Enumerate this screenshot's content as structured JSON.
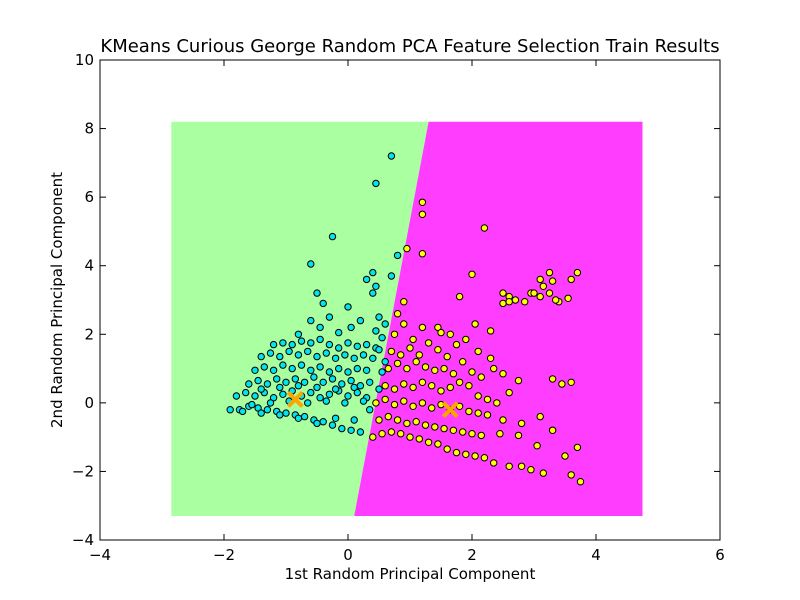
{
  "chart_data": {
    "type": "scatter",
    "title": "KMeans Curious George Random PCA Feature Selection Train Results",
    "xlabel": "1st Random Principal Component",
    "ylabel": "2nd Random Principal Component",
    "xlim": [
      -4,
      6
    ],
    "ylim": [
      -4,
      10
    ],
    "xticks": [
      -4,
      -2,
      0,
      2,
      4,
      6
    ],
    "yticks": [
      -4,
      -2,
      0,
      2,
      4,
      6,
      8,
      10
    ],
    "grid": false,
    "legend": "none",
    "regions": {
      "extent": {
        "x": [
          -2.85,
          4.75
        ],
        "y": [
          -3.3,
          8.2
        ]
      },
      "boundary": [
        [
          0.1,
          -3.3
        ],
        [
          1.3,
          8.2
        ]
      ],
      "left_color": "#aaffa0",
      "right_color": "#ff3dff"
    },
    "series": [
      {
        "color": "#00e5ee",
        "points": [
          [
            -1.9,
            -0.2
          ],
          [
            -1.75,
            -0.2
          ],
          [
            -1.6,
            -0.1
          ],
          [
            -1.45,
            -0.15
          ],
          [
            -1.3,
            -0.2
          ],
          [
            -1.15,
            -0.25
          ],
          [
            -1.0,
            -0.3
          ],
          [
            -0.85,
            -0.35
          ],
          [
            -0.7,
            -0.4
          ],
          [
            -0.55,
            -0.5
          ],
          [
            -0.4,
            -0.55
          ],
          [
            -0.25,
            -0.65
          ],
          [
            -0.1,
            -0.75
          ],
          [
            0.05,
            -0.8
          ],
          [
            0.2,
            -0.85
          ],
          [
            -1.8,
            0.2
          ],
          [
            -1.65,
            0.3
          ],
          [
            -1.5,
            0.2
          ],
          [
            -1.35,
            0.3
          ],
          [
            -1.2,
            0.15
          ],
          [
            -1.05,
            0.25
          ],
          [
            -0.9,
            0.35
          ],
          [
            -0.75,
            0.2
          ],
          [
            -0.6,
            0.3
          ],
          [
            -0.45,
            0.15
          ],
          [
            -0.3,
            0.25
          ],
          [
            -0.15,
            0.35
          ],
          [
            0.0,
            0.2
          ],
          [
            0.15,
            0.3
          ],
          [
            0.3,
            0.15
          ],
          [
            -1.6,
            0.55
          ],
          [
            -1.45,
            0.65
          ],
          [
            -1.3,
            0.55
          ],
          [
            -1.15,
            0.7
          ],
          [
            -1.0,
            0.6
          ],
          [
            -0.85,
            0.7
          ],
          [
            -0.7,
            0.6
          ],
          [
            -0.55,
            0.75
          ],
          [
            -0.4,
            0.6
          ],
          [
            -0.25,
            0.7
          ],
          [
            -0.1,
            0.55
          ],
          [
            0.05,
            0.65
          ],
          [
            0.2,
            0.5
          ],
          [
            0.35,
            0.6
          ],
          [
            -1.5,
            0.95
          ],
          [
            -1.35,
            1.05
          ],
          [
            -1.2,
            0.95
          ],
          [
            -1.05,
            1.1
          ],
          [
            -0.9,
            1.0
          ],
          [
            -0.75,
            1.1
          ],
          [
            -0.6,
            0.95
          ],
          [
            -0.45,
            1.05
          ],
          [
            -0.3,
            0.9
          ],
          [
            -0.15,
            1.0
          ],
          [
            0.0,
            0.9
          ],
          [
            0.15,
            1.0
          ],
          [
            0.3,
            0.95
          ],
          [
            -1.4,
            1.35
          ],
          [
            -1.25,
            1.45
          ],
          [
            -1.1,
            1.35
          ],
          [
            -0.95,
            1.5
          ],
          [
            -0.8,
            1.4
          ],
          [
            -0.65,
            1.5
          ],
          [
            -0.5,
            1.35
          ],
          [
            -0.35,
            1.45
          ],
          [
            -0.2,
            1.3
          ],
          [
            -0.05,
            1.4
          ],
          [
            0.1,
            1.3
          ],
          [
            0.25,
            1.4
          ],
          [
            0.4,
            1.3
          ],
          [
            -1.2,
            1.7
          ],
          [
            -1.05,
            1.75
          ],
          [
            -0.9,
            1.7
          ],
          [
            -0.75,
            1.8
          ],
          [
            -0.6,
            1.75
          ],
          [
            -0.45,
            1.85
          ],
          [
            -0.3,
            1.7
          ],
          [
            -0.15,
            1.6
          ],
          [
            0.0,
            1.75
          ],
          [
            0.15,
            1.65
          ],
          [
            0.3,
            1.7
          ],
          [
            0.45,
            1.6
          ],
          [
            -0.8,
            2.0
          ],
          [
            -0.6,
            2.4
          ],
          [
            -0.45,
            2.2
          ],
          [
            -0.3,
            2.5
          ],
          [
            -0.15,
            2.05
          ],
          [
            0.05,
            2.2
          ],
          [
            0.2,
            2.4
          ],
          [
            0.5,
            2.5
          ],
          [
            0.45,
            2.1
          ],
          [
            0.6,
            2.3
          ],
          [
            -0.5,
            3.2
          ],
          [
            -0.4,
            2.9
          ],
          [
            0.0,
            2.8
          ],
          [
            0.4,
            3.2
          ],
          [
            0.45,
            3.4
          ],
          [
            0.7,
            3.7
          ],
          [
            0.4,
            3.8
          ],
          [
            0.3,
            3.6
          ],
          [
            -0.6,
            4.05
          ],
          [
            0.8,
            4.3
          ],
          [
            -0.25,
            4.85
          ],
          [
            0.45,
            6.4
          ],
          [
            0.7,
            7.2
          ],
          [
            -1.55,
            -0.05
          ],
          [
            -1.25,
            0.0
          ],
          [
            -0.95,
            0.05
          ],
          [
            -0.65,
            0.0
          ],
          [
            -0.35,
            0.05
          ],
          [
            -0.05,
            0.0
          ],
          [
            0.25,
            0.05
          ],
          [
            -1.4,
            0.4
          ],
          [
            -1.1,
            0.45
          ],
          [
            -0.8,
            0.5
          ],
          [
            -0.5,
            0.45
          ],
          [
            -0.2,
            0.4
          ],
          [
            0.1,
            0.45
          ],
          [
            -1.7,
            -0.25
          ],
          [
            -1.4,
            -0.3
          ],
          [
            -1.1,
            -0.35
          ],
          [
            -0.8,
            -0.45
          ],
          [
            -0.5,
            -0.6
          ],
          [
            -0.2,
            -0.45
          ],
          [
            0.1,
            -0.5
          ],
          [
            0.35,
            -0.2
          ],
          [
            0.5,
            0.4
          ],
          [
            0.55,
            0.9
          ],
          [
            0.6,
            1.2
          ],
          [
            0.5,
            1.55
          ],
          [
            0.55,
            1.9
          ]
        ]
      },
      {
        "color": "#ffff00",
        "points": [
          [
            0.4,
            -1.0
          ],
          [
            0.55,
            -0.9
          ],
          [
            0.7,
            -0.85
          ],
          [
            0.85,
            -0.9
          ],
          [
            1.0,
            -1.0
          ],
          [
            1.15,
            -1.05
          ],
          [
            1.3,
            -1.15
          ],
          [
            1.45,
            -1.2
          ],
          [
            1.6,
            -1.35
          ],
          [
            1.75,
            -1.45
          ],
          [
            1.9,
            -1.5
          ],
          [
            2.05,
            -1.55
          ],
          [
            2.2,
            -1.6
          ],
          [
            2.35,
            -1.75
          ],
          [
            2.6,
            -1.85
          ],
          [
            2.8,
            -1.85
          ],
          [
            2.95,
            -1.95
          ],
          [
            3.15,
            -2.05
          ],
          [
            3.6,
            -2.1
          ],
          [
            3.75,
            -2.3
          ],
          [
            0.5,
            -0.5
          ],
          [
            0.65,
            -0.4
          ],
          [
            0.8,
            -0.5
          ],
          [
            0.95,
            -0.6
          ],
          [
            1.1,
            -0.55
          ],
          [
            1.25,
            -0.65
          ],
          [
            1.4,
            -0.7
          ],
          [
            1.55,
            -0.75
          ],
          [
            1.7,
            -0.8
          ],
          [
            1.85,
            -0.85
          ],
          [
            2.0,
            -0.9
          ],
          [
            2.15,
            -0.95
          ],
          [
            2.45,
            -0.9
          ],
          [
            2.75,
            -0.95
          ],
          [
            3.05,
            -1.25
          ],
          [
            3.5,
            -1.55
          ],
          [
            3.3,
            -0.8
          ],
          [
            3.7,
            -1.3
          ],
          [
            0.45,
            0.0
          ],
          [
            0.6,
            0.1
          ],
          [
            0.75,
            -0.05
          ],
          [
            0.9,
            0.05
          ],
          [
            1.05,
            -0.1
          ],
          [
            1.2,
            0.0
          ],
          [
            1.35,
            -0.15
          ],
          [
            1.5,
            -0.05
          ],
          [
            1.65,
            -0.2
          ],
          [
            1.8,
            -0.1
          ],
          [
            1.95,
            -0.25
          ],
          [
            2.1,
            -0.3
          ],
          [
            2.25,
            -0.35
          ],
          [
            2.5,
            -0.5
          ],
          [
            2.8,
            -0.6
          ],
          [
            3.1,
            -0.4
          ],
          [
            3.3,
            -0.8
          ],
          [
            0.6,
            0.5
          ],
          [
            0.75,
            0.4
          ],
          [
            0.9,
            0.55
          ],
          [
            1.05,
            0.45
          ],
          [
            1.2,
            0.6
          ],
          [
            1.35,
            0.5
          ],
          [
            1.5,
            0.35
          ],
          [
            1.65,
            0.45
          ],
          [
            1.8,
            0.6
          ],
          [
            1.95,
            0.5
          ],
          [
            2.1,
            0.2
          ],
          [
            2.25,
            0.1
          ],
          [
            2.4,
            0.0
          ],
          [
            2.6,
            0.3
          ],
          [
            2.75,
            0.65
          ],
          [
            3.3,
            0.7
          ],
          [
            3.45,
            0.55
          ],
          [
            3.6,
            0.6
          ],
          [
            0.65,
            1.0
          ],
          [
            0.8,
            1.15
          ],
          [
            0.95,
            1.0
          ],
          [
            1.1,
            1.2
          ],
          [
            1.25,
            1.05
          ],
          [
            1.4,
            0.95
          ],
          [
            1.55,
            1.0
          ],
          [
            1.7,
            0.85
          ],
          [
            1.85,
            1.2
          ],
          [
            2.0,
            0.9
          ],
          [
            2.15,
            0.75
          ],
          [
            2.35,
            1.0
          ],
          [
            2.5,
            0.85
          ],
          [
            0.7,
            1.5
          ],
          [
            0.85,
            1.4
          ],
          [
            1.0,
            1.6
          ],
          [
            1.15,
            1.4
          ],
          [
            1.3,
            1.75
          ],
          [
            1.45,
            1.55
          ],
          [
            1.6,
            1.35
          ],
          [
            1.75,
            1.7
          ],
          [
            1.9,
            1.85
          ],
          [
            2.1,
            1.5
          ],
          [
            2.3,
            1.3
          ],
          [
            0.75,
            2.0
          ],
          [
            0.9,
            2.3
          ],
          [
            1.05,
            1.85
          ],
          [
            1.2,
            2.2
          ],
          [
            1.45,
            2.2
          ],
          [
            1.5,
            2.05
          ],
          [
            1.65,
            2.0
          ],
          [
            2.05,
            2.3
          ],
          [
            2.3,
            2.1
          ],
          [
            0.8,
            2.6
          ],
          [
            0.9,
            2.95
          ],
          [
            1.8,
            3.1
          ],
          [
            2.0,
            3.75
          ],
          [
            1.2,
            4.35
          ],
          [
            0.95,
            4.5
          ],
          [
            1.2,
            5.5
          ],
          [
            1.2,
            5.85
          ],
          [
            2.2,
            5.1
          ],
          [
            2.5,
            2.9
          ],
          [
            2.6,
            3.1
          ],
          [
            2.7,
            3.0
          ],
          [
            2.85,
            2.95
          ],
          [
            2.95,
            3.2
          ],
          [
            3.1,
            3.1
          ],
          [
            3.25,
            3.2
          ],
          [
            3.4,
            2.95
          ],
          [
            3.55,
            3.05
          ],
          [
            3.0,
            3.2
          ],
          [
            3.3,
            3.55
          ],
          [
            3.6,
            3.6
          ],
          [
            3.7,
            3.8
          ],
          [
            3.1,
            3.6
          ],
          [
            3.25,
            3.8
          ],
          [
            2.6,
            2.95
          ],
          [
            3.35,
            3.0
          ],
          [
            3.15,
            3.4
          ],
          [
            2.5,
            3.2
          ]
        ]
      }
    ],
    "centroids": {
      "color": "#ffa500",
      "points": [
        [
          -0.85,
          0.1
        ],
        [
          1.65,
          -0.2
        ]
      ]
    }
  }
}
